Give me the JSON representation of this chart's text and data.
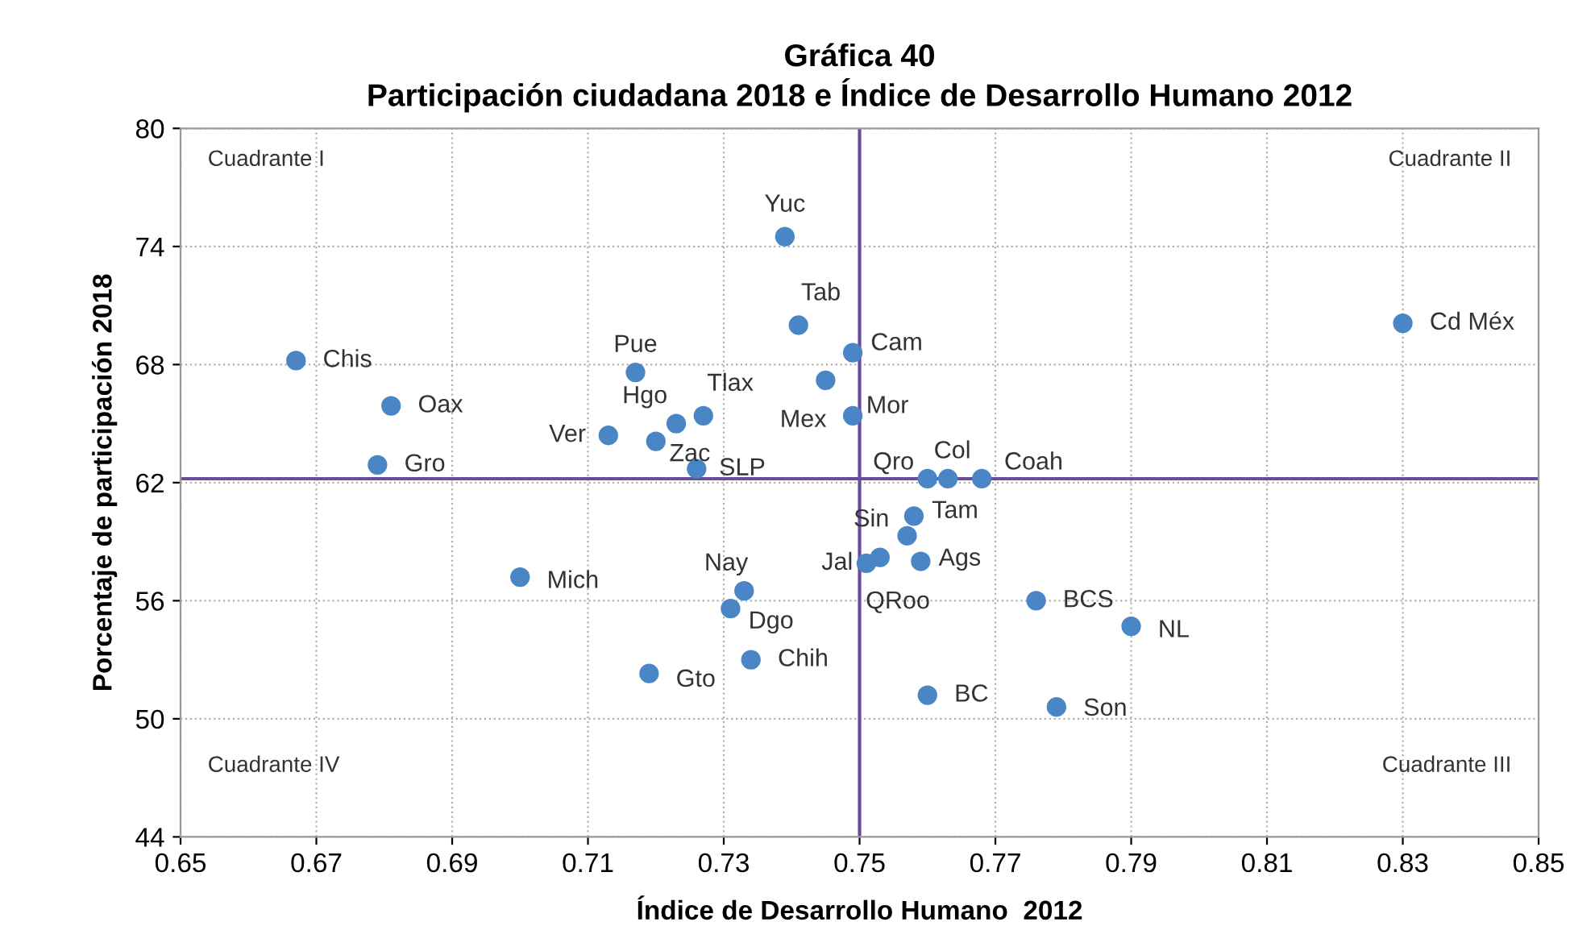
{
  "chart_data": {
    "type": "scatter",
    "title": "Gráfica 40\nParticipación ciudadana 2018 e Índice de Desarrollo Humano 2012",
    "xlabel": "Índice de Desarrollo Humano  2012",
    "ylabel": "Porcentaje de participación 2018",
    "series": [
      {
        "color": "#4a86c5",
        "x": [
          0.667,
          0.681,
          0.679,
          0.717,
          0.723,
          0.727,
          0.713,
          0.72,
          0.726,
          0.739,
          0.741,
          0.749,
          0.745,
          0.749,
          0.83,
          0.76,
          0.763,
          0.768,
          0.758,
          0.757,
          0.751,
          0.753,
          0.759,
          0.776,
          0.79,
          0.76,
          0.779,
          0.7,
          0.733,
          0.731,
          0.734,
          0.719
        ],
        "values": [
          68.2,
          65.9,
          62.9,
          67.6,
          65.0,
          65.4,
          64.4,
          64.1,
          62.7,
          74.5,
          70.0,
          68.6,
          67.2,
          65.4,
          70.1,
          62.2,
          62.2,
          62.2,
          60.3,
          59.3,
          57.9,
          58.2,
          58.0,
          56.0,
          54.7,
          51.2,
          50.6,
          57.2,
          56.5,
          55.6,
          53.0,
          52.3
        ]
      }
    ],
    "annotations": [
      {
        "text": "Chis",
        "x": 0.667,
        "y": 68.2
      },
      {
        "text": "Oax",
        "x": 0.681,
        "y": 65.9
      },
      {
        "text": "Gro",
        "x": 0.679,
        "y": 62.9
      },
      {
        "text": "Pue",
        "x": 0.717,
        "y": 67.6
      },
      {
        "text": "Hgo",
        "x": 0.723,
        "y": 65.0
      },
      {
        "text": "Tlax",
        "x": 0.727,
        "y": 65.4
      },
      {
        "text": "Ver",
        "x": 0.713,
        "y": 64.4
      },
      {
        "text": "Zac",
        "x": 0.72,
        "y": 64.1
      },
      {
        "text": "SLP",
        "x": 0.726,
        "y": 62.7
      },
      {
        "text": "Yuc",
        "x": 0.739,
        "y": 74.5
      },
      {
        "text": "Tab",
        "x": 0.741,
        "y": 70.0
      },
      {
        "text": "Cam",
        "x": 0.749,
        "y": 68.6
      },
      {
        "text": "Mex",
        "x": 0.745,
        "y": 67.2
      },
      {
        "text": "Mor",
        "x": 0.749,
        "y": 65.4
      },
      {
        "text": "Cd Méx",
        "x": 0.83,
        "y": 70.1
      },
      {
        "text": "Qro",
        "x": 0.76,
        "y": 62.2
      },
      {
        "text": "Col",
        "x": 0.763,
        "y": 62.2
      },
      {
        "text": "Coah",
        "x": 0.768,
        "y": 62.2
      },
      {
        "text": "Tam",
        "x": 0.758,
        "y": 60.3
      },
      {
        "text": "Sin",
        "x": 0.757,
        "y": 59.3
      },
      {
        "text": "Jal",
        "x": 0.751,
        "y": 57.9
      },
      {
        "text": "QRoo",
        "x": 0.753,
        "y": 58.2
      },
      {
        "text": "Ags",
        "x": 0.759,
        "y": 58.0
      },
      {
        "text": "BCS",
        "x": 0.776,
        "y": 56.0
      },
      {
        "text": "NL",
        "x": 0.79,
        "y": 54.7
      },
      {
        "text": "BC",
        "x": 0.76,
        "y": 51.2
      },
      {
        "text": "Son",
        "x": 0.779,
        "y": 50.6
      },
      {
        "text": "Mich",
        "x": 0.7,
        "y": 57.2
      },
      {
        "text": "Nay",
        "x": 0.733,
        "y": 56.5
      },
      {
        "text": "Dgo",
        "x": 0.731,
        "y": 55.6
      },
      {
        "text": "Chih",
        "x": 0.734,
        "y": 53.0
      },
      {
        "text": "Gto",
        "x": 0.719,
        "y": 52.3
      },
      "Cuadrante I",
      "Cuadrante II",
      "Cuadrante III",
      "Cuadrante IV"
    ],
    "ref_lines": [
      {
        "axis": "x",
        "value": 0.75,
        "color": "#6a4c9c"
      },
      {
        "axis": "y",
        "value": 62.2,
        "color": "#6a4c9c"
      }
    ],
    "xlim": [
      0.65,
      0.85
    ],
    "xticks": [
      0.65,
      0.67,
      0.69,
      0.71,
      0.73,
      0.75,
      0.77,
      0.79,
      0.81,
      0.83,
      0.85
    ],
    "ylim": [
      44,
      80
    ],
    "yticks": [
      44,
      50,
      56,
      62,
      68,
      74,
      80
    ],
    "grid": true,
    "marker": "circle"
  }
}
